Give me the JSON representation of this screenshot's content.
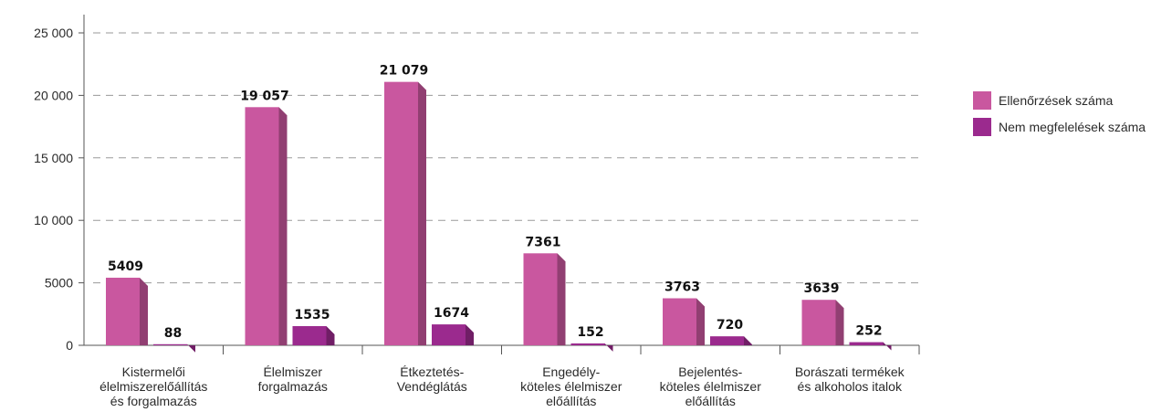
{
  "chart_data": {
    "type": "bar",
    "categories": [
      [
        "Kistermelői",
        "élelmiszerelőállítás",
        "és forgalmazás"
      ],
      [
        "Élelmiszer",
        "forgalmazás"
      ],
      [
        "Étkeztetés-",
        "Vendéglátás"
      ],
      [
        "Engedély-",
        "köteles élelmiszer",
        "előállítás"
      ],
      [
        "Bejelentés-",
        "köteles élelmiszer",
        "előállítás"
      ],
      [
        "Borászati termékek",
        "és alkoholos italok"
      ]
    ],
    "series": [
      {
        "name": "Ellenőrzések száma",
        "color": "#c9579f",
        "values": [
          5409,
          19057,
          21079,
          7361,
          3763,
          3639
        ],
        "labels": [
          "5409",
          "19 057",
          "21 079",
          "7361",
          "3763",
          "3639"
        ]
      },
      {
        "name": "Nem megfelelések száma",
        "color": "#9b2a8e",
        "values": [
          88,
          1535,
          1674,
          152,
          720,
          252
        ],
        "labels": [
          "88",
          "1535",
          "1674",
          "152",
          "720",
          "252"
        ]
      }
    ],
    "yticks": [
      0,
      5000,
      10000,
      15000,
      20000,
      25000
    ],
    "ytick_labels": [
      "0",
      "5000",
      "10 000",
      "15 000",
      "20 000",
      "25 000"
    ],
    "ylim": [
      0,
      25000
    ],
    "grid": true,
    "legend_position": "right"
  }
}
